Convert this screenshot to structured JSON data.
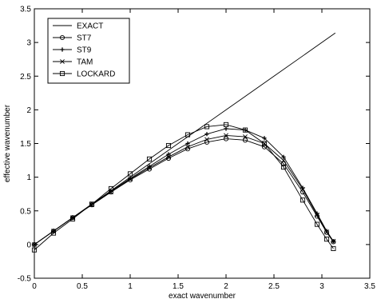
{
  "chart_data": {
    "type": "line",
    "xlabel": "exact wavenumber",
    "ylabel": "effective wavenumber",
    "xlim": [
      0,
      3.5
    ],
    "ylim": [
      -0.5,
      3.5
    ],
    "xticks": [
      "0",
      "0.5",
      "1",
      "1.5",
      "2",
      "2.5",
      "3",
      "3.5"
    ],
    "yticks": [
      "-0.5",
      "0",
      "0.5",
      "1",
      "1.5",
      "2",
      "2.5",
      "3",
      "3.5"
    ],
    "grid": false,
    "legend": "top-left",
    "series": [
      {
        "name": "EXACT",
        "marker": "none",
        "x": [
          0,
          0.5,
          1.0,
          1.5,
          2.0,
          2.5,
          3.14
        ],
        "y": [
          0,
          0.5,
          1.0,
          1.5,
          2.0,
          2.5,
          3.14
        ]
      },
      {
        "name": "ST7",
        "marker": "circle",
        "x": [
          0,
          0.2,
          0.4,
          0.6,
          0.8,
          1.0,
          1.2,
          1.4,
          1.6,
          1.8,
          2.0,
          2.2,
          2.4,
          2.6,
          2.8,
          2.95,
          3.05,
          3.12
        ],
        "y": [
          0,
          0.2,
          0.4,
          0.59,
          0.78,
          0.96,
          1.12,
          1.28,
          1.42,
          1.52,
          1.57,
          1.55,
          1.45,
          1.2,
          0.78,
          0.42,
          0.18,
          0.04
        ]
      },
      {
        "name": "ST9",
        "marker": "plus",
        "x": [
          0,
          0.2,
          0.4,
          0.6,
          0.8,
          1.0,
          1.2,
          1.4,
          1.6,
          1.8,
          2.0,
          2.2,
          2.4,
          2.6,
          2.8,
          2.95,
          3.05,
          3.12
        ],
        "y": [
          0,
          0.2,
          0.4,
          0.6,
          0.79,
          0.98,
          1.16,
          1.34,
          1.5,
          1.64,
          1.72,
          1.7,
          1.58,
          1.3,
          0.84,
          0.46,
          0.2,
          0.05
        ]
      },
      {
        "name": "TAM",
        "marker": "x",
        "x": [
          0,
          0.2,
          0.4,
          0.6,
          0.8,
          1.0,
          1.2,
          1.4,
          1.6,
          1.8,
          2.0,
          2.2,
          2.4,
          2.6,
          2.8,
          2.95,
          3.05,
          3.12
        ],
        "y": [
          0,
          0.2,
          0.4,
          0.59,
          0.78,
          0.97,
          1.14,
          1.3,
          1.45,
          1.56,
          1.62,
          1.6,
          1.5,
          1.25,
          0.82,
          0.44,
          0.19,
          0.05
        ]
      },
      {
        "name": "LOCKARD",
        "marker": "square",
        "x": [
          0,
          0.2,
          0.4,
          0.6,
          0.8,
          1.0,
          1.2,
          1.4,
          1.6,
          1.8,
          2.0,
          2.2,
          2.4,
          2.6,
          2.8,
          2.95,
          3.05,
          3.12
        ],
        "y": [
          -0.08,
          0.17,
          0.38,
          0.6,
          0.83,
          1.05,
          1.27,
          1.47,
          1.63,
          1.75,
          1.78,
          1.7,
          1.5,
          1.15,
          0.66,
          0.3,
          0.08,
          -0.06
        ]
      }
    ]
  }
}
